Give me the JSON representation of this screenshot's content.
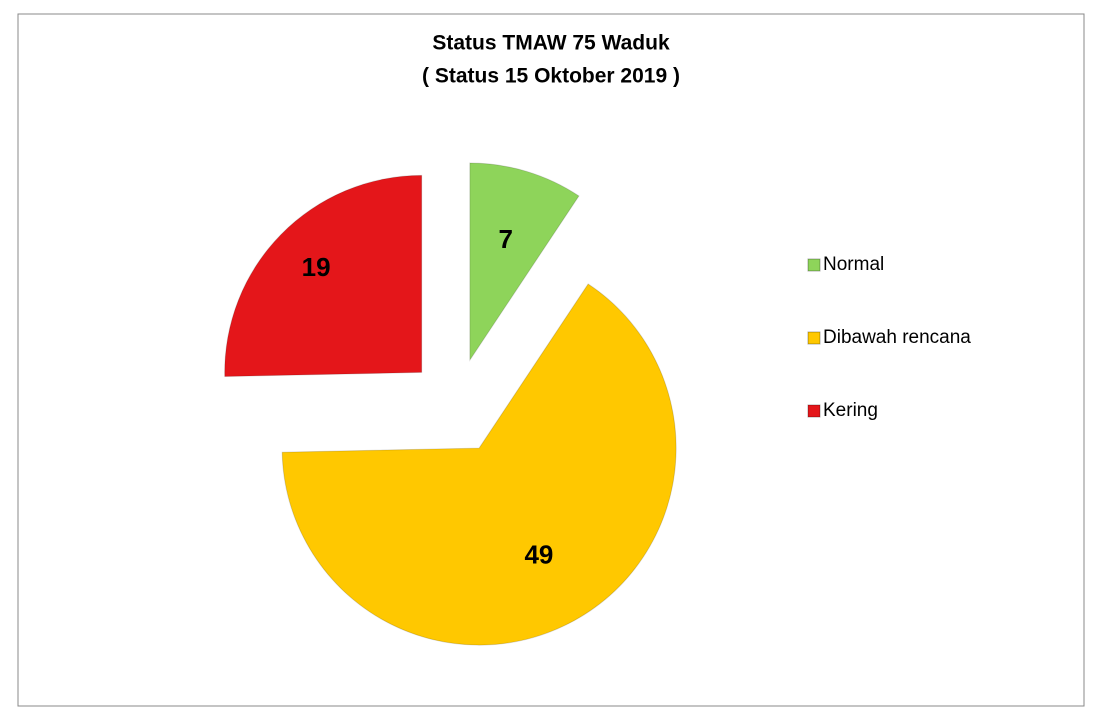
{
  "chart_data": {
    "type": "pie",
    "title": "Status TMAW 75 Waduk",
    "subtitle": "( Status 15 Oktober 2019 )",
    "categories": [
      "Normal",
      "Dibawah rencana",
      "Kering"
    ],
    "values": [
      7,
      49,
      19
    ],
    "colors": [
      "#8ed45a",
      "#ffc800",
      "#e4161a"
    ],
    "legend": "right"
  }
}
